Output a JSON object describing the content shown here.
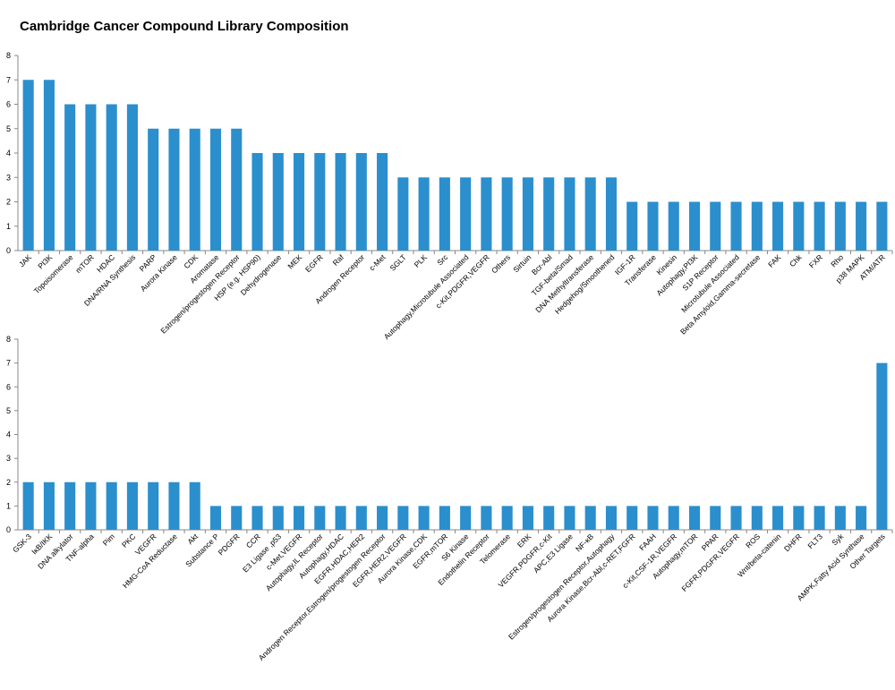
{
  "title": "Cambridge Cancer Compound Library Composition",
  "colors": {
    "bar": "#2b8fcd",
    "axis": "#888888"
  },
  "chart_data": [
    {
      "type": "bar",
      "ylim": [
        0,
        8
      ],
      "yticks": [
        "0",
        "1",
        "2",
        "3",
        "4",
        "5",
        "6",
        "7",
        "8"
      ],
      "grid": false,
      "categories": [
        "JAK",
        "PI3K",
        "Topoisomerase",
        "mTOR",
        "HDAC",
        "DNA/RNA Synthesis",
        "PARP",
        "Aurora Kinase",
        "CDK",
        "Aromatase",
        "Estrogen/progestogen Receptor",
        "HSP (e.g. HSP90)",
        "Dehydrogenase",
        "MEK",
        "EGFR",
        "Raf",
        "Androgen Receptor",
        "c-Met",
        "SGLT",
        "PLK",
        "Src",
        "Autophagy,Microtubule Associated",
        "c-Kit,PDGFR,VEGFR",
        "Others",
        "Sirtuin",
        "Bcr-Abl",
        "TGF-beta/Smad",
        "DNA Methyltransferase",
        "Hedgehog/Smoothened",
        "IGF-1R",
        "Transferase",
        "Kinesin",
        "Autophagy,PI3K",
        "S1P Receptor",
        "Microtubule Associated",
        "Beta Amyloid,Gamma-secretase",
        "FAK",
        "Chk",
        "FXR",
        "Rho",
        "p38 MAPK",
        "ATM/ATR"
      ],
      "values": [
        7,
        7,
        6,
        6,
        6,
        6,
        5,
        5,
        5,
        5,
        5,
        4,
        4,
        4,
        4,
        4,
        4,
        4,
        3,
        3,
        3,
        3,
        3,
        3,
        3,
        3,
        3,
        3,
        3,
        2,
        2,
        2,
        2,
        2,
        2,
        2,
        2,
        2,
        2,
        2,
        2,
        2
      ]
    },
    {
      "type": "bar",
      "ylim": [
        0,
        8
      ],
      "yticks": [
        "0",
        "1",
        "2",
        "3",
        "4",
        "5",
        "6",
        "7",
        "8"
      ],
      "grid": false,
      "categories": [
        "GSK-3",
        "IκB/IKK",
        "DNA alkylator",
        "TNF-alpha",
        "Pim",
        "PKC",
        "VEGFR",
        "HMG-CoA Reductase",
        "Akt",
        "Substance P",
        "PDGFR",
        "CCR",
        "E3 Ligase ,p53",
        "c-Met,VEGFR",
        "Autophagy,IL Receptor",
        "Autophagy,HDAC",
        "EGFR,HDAC,HER2",
        "Androgen Receptor,Estrogen/progestogen Receptor",
        "EGFR,HER2,VEGFR",
        "Aurora Kinase,CDK",
        "EGFR,mTOR",
        "S6 Kinase",
        "Endothelin Receptor",
        "Telomerase",
        "ERK",
        "VEGFR,PDGFR,c-Kit",
        "APC,E3 Ligase",
        "NF-κB",
        "Estrogen/progestogen Receptor,Autophagy",
        "Aurora Kinase,Bcr-Abl,c-RET,FGFR",
        "FAAH",
        "c-Kit,CSF-1R,VEGFR",
        "Autophagy,mTOR",
        "PPAR",
        "FGFR,PDGFR,VEGFR",
        "ROS",
        "Wnt/beta-catenin",
        "DHFR",
        "FLT3",
        "Syk",
        "AMPK,Fatty Acid Synthase",
        "Other Targets"
      ],
      "values": [
        2,
        2,
        2,
        2,
        2,
        2,
        2,
        2,
        2,
        1,
        1,
        1,
        1,
        1,
        1,
        1,
        1,
        1,
        1,
        1,
        1,
        1,
        1,
        1,
        1,
        1,
        1,
        1,
        1,
        1,
        1,
        1,
        1,
        1,
        1,
        1,
        1,
        1,
        1,
        1,
        1,
        7
      ]
    }
  ]
}
